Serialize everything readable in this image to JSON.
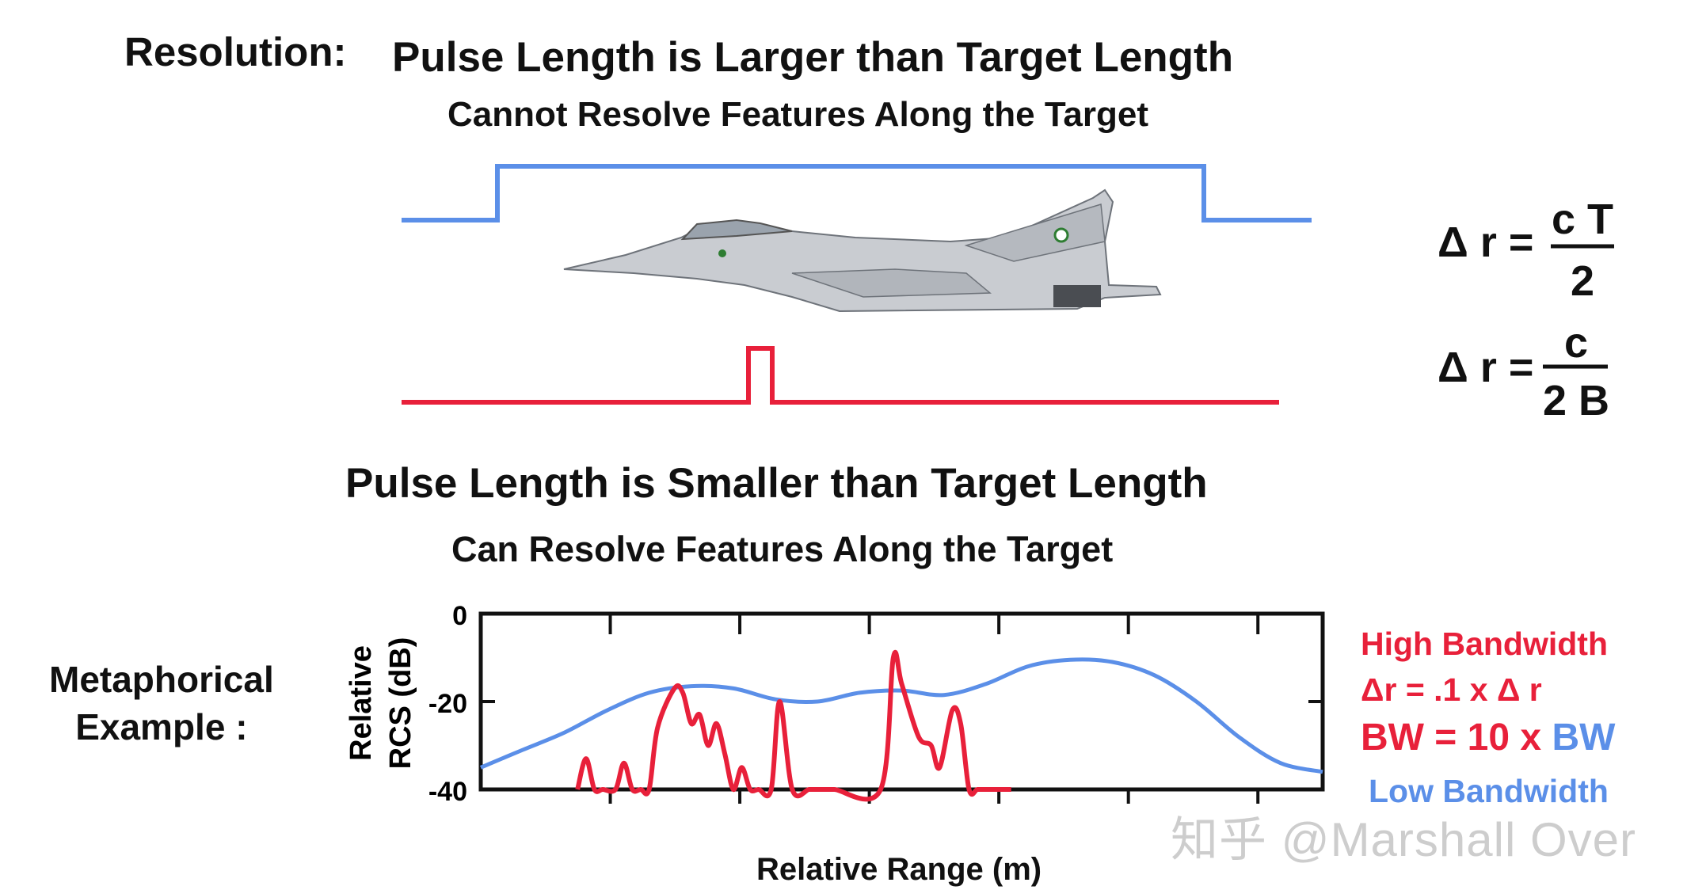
{
  "header": {
    "resolution_label": "Resolution:",
    "top_title": "Pulse Length is Larger than Target Length",
    "top_subtitle": "Cannot Resolve Features Along the Target",
    "bottom_title": "Pulse Length is Smaller than Target Length",
    "bottom_subtitle": "Can Resolve Features Along the Target"
  },
  "formulas": {
    "f1_lhs": "Δ r =",
    "f1_num": "c T",
    "f1_den": "2",
    "f2_lhs": "Δ r =",
    "f2_num": "c",
    "f2_den": "2 B"
  },
  "example": {
    "line1": "Metaphorical",
    "line2": "Example :"
  },
  "chart_data": {
    "type": "line",
    "ylabel_line1": "Relative",
    "ylabel_line2": "RCS (dB)",
    "xlabel": "Relative Range (m)",
    "ylim": [
      -40,
      0
    ],
    "y_ticks": [
      "0",
      "-20",
      "-40"
    ],
    "series": [
      {
        "name": "Low Bandwidth",
        "color": "#5b8fe8",
        "x": [
          0,
          5,
          10,
          15,
          20,
          25,
          30,
          35,
          40,
          45,
          50,
          55,
          60,
          65,
          70,
          75,
          80,
          85,
          90,
          95,
          100
        ],
        "y": [
          -35,
          -31,
          -27,
          -22,
          -18,
          -16.5,
          -17,
          -19.5,
          -20,
          -18,
          -17.5,
          -18.5,
          -16,
          -12,
          -10.5,
          -11,
          -14,
          -20,
          -28,
          -34,
          -36
        ]
      },
      {
        "name": "High Bandwidth",
        "color": "#e8203a",
        "x": [
          11.5,
          12.5,
          13.5,
          14.5,
          16,
          17,
          18,
          19,
          20,
          21,
          23,
          24,
          25,
          26,
          27,
          28,
          29,
          30,
          31,
          32,
          33,
          34.5,
          35.5,
          37,
          39,
          40,
          41,
          42,
          47.5,
          49,
          50,
          52,
          53.5,
          54.5,
          56,
          57,
          58,
          59,
          60,
          61,
          62,
          63
        ],
        "y": [
          -40,
          -33,
          -40,
          -40,
          -40,
          -34,
          -40,
          -40,
          -40,
          -26,
          -17,
          -18,
          -25,
          -23,
          -30,
          -25,
          -32,
          -40,
          -35,
          -40,
          -40,
          -40,
          -20,
          -40,
          -40,
          -40,
          -40,
          -40,
          -40,
          -10,
          -16,
          -28,
          -30,
          -35,
          -22,
          -25,
          -40,
          -40,
          -40,
          -40,
          -40,
          -40
        ]
      }
    ]
  },
  "legend": {
    "high_bw": "High Bandwidth",
    "dr_prefix": "Δr = .1 x ",
    "dr_suffix": "Δ r",
    "bw_prefix": "BW = 10 x ",
    "bw_suffix": "BW",
    "low_bw": "Low Bandwidth",
    "red": "#e8203a",
    "blue": "#5b8fe8"
  },
  "watermark": "知乎 @Marshall Over"
}
